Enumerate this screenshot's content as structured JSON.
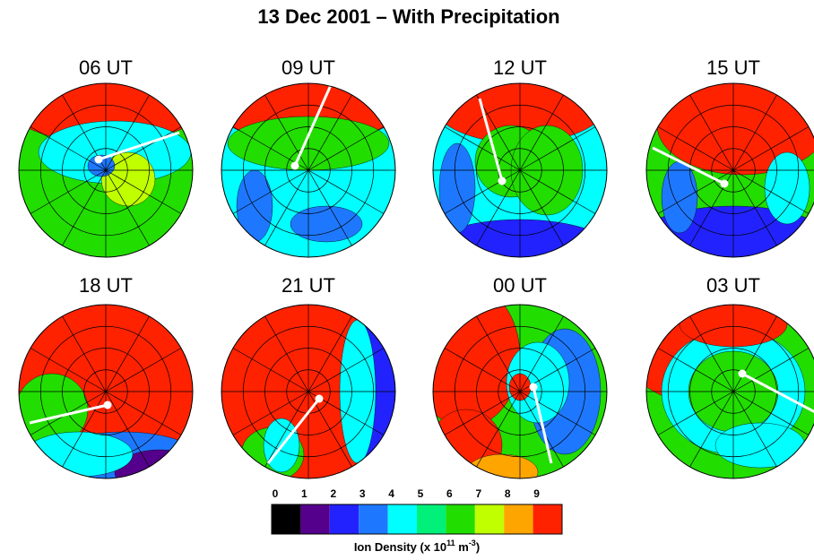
{
  "chart_data": {
    "type": "polar-contour-panels",
    "title": "13 Dec 2001 – With Precipitation",
    "panels": [
      "06 UT",
      "09 UT",
      "12 UT",
      "15 UT",
      "18 UT",
      "21 UT",
      "00 UT",
      "03 UT"
    ],
    "colorbar": {
      "ticks": [
        0,
        1,
        2,
        3,
        4,
        5,
        6,
        7,
        8,
        9
      ],
      "colors": [
        "#000000",
        "#55008c",
        "#2222ff",
        "#1e78ff",
        "#00ffff",
        "#00f07a",
        "#22dd00",
        "#c0ff00",
        "#ffa500",
        "#ff2200"
      ],
      "label": [
        "Ion Density (x 10",
        "11",
        " m",
        "-3",
        ")"
      ]
    }
  }
}
